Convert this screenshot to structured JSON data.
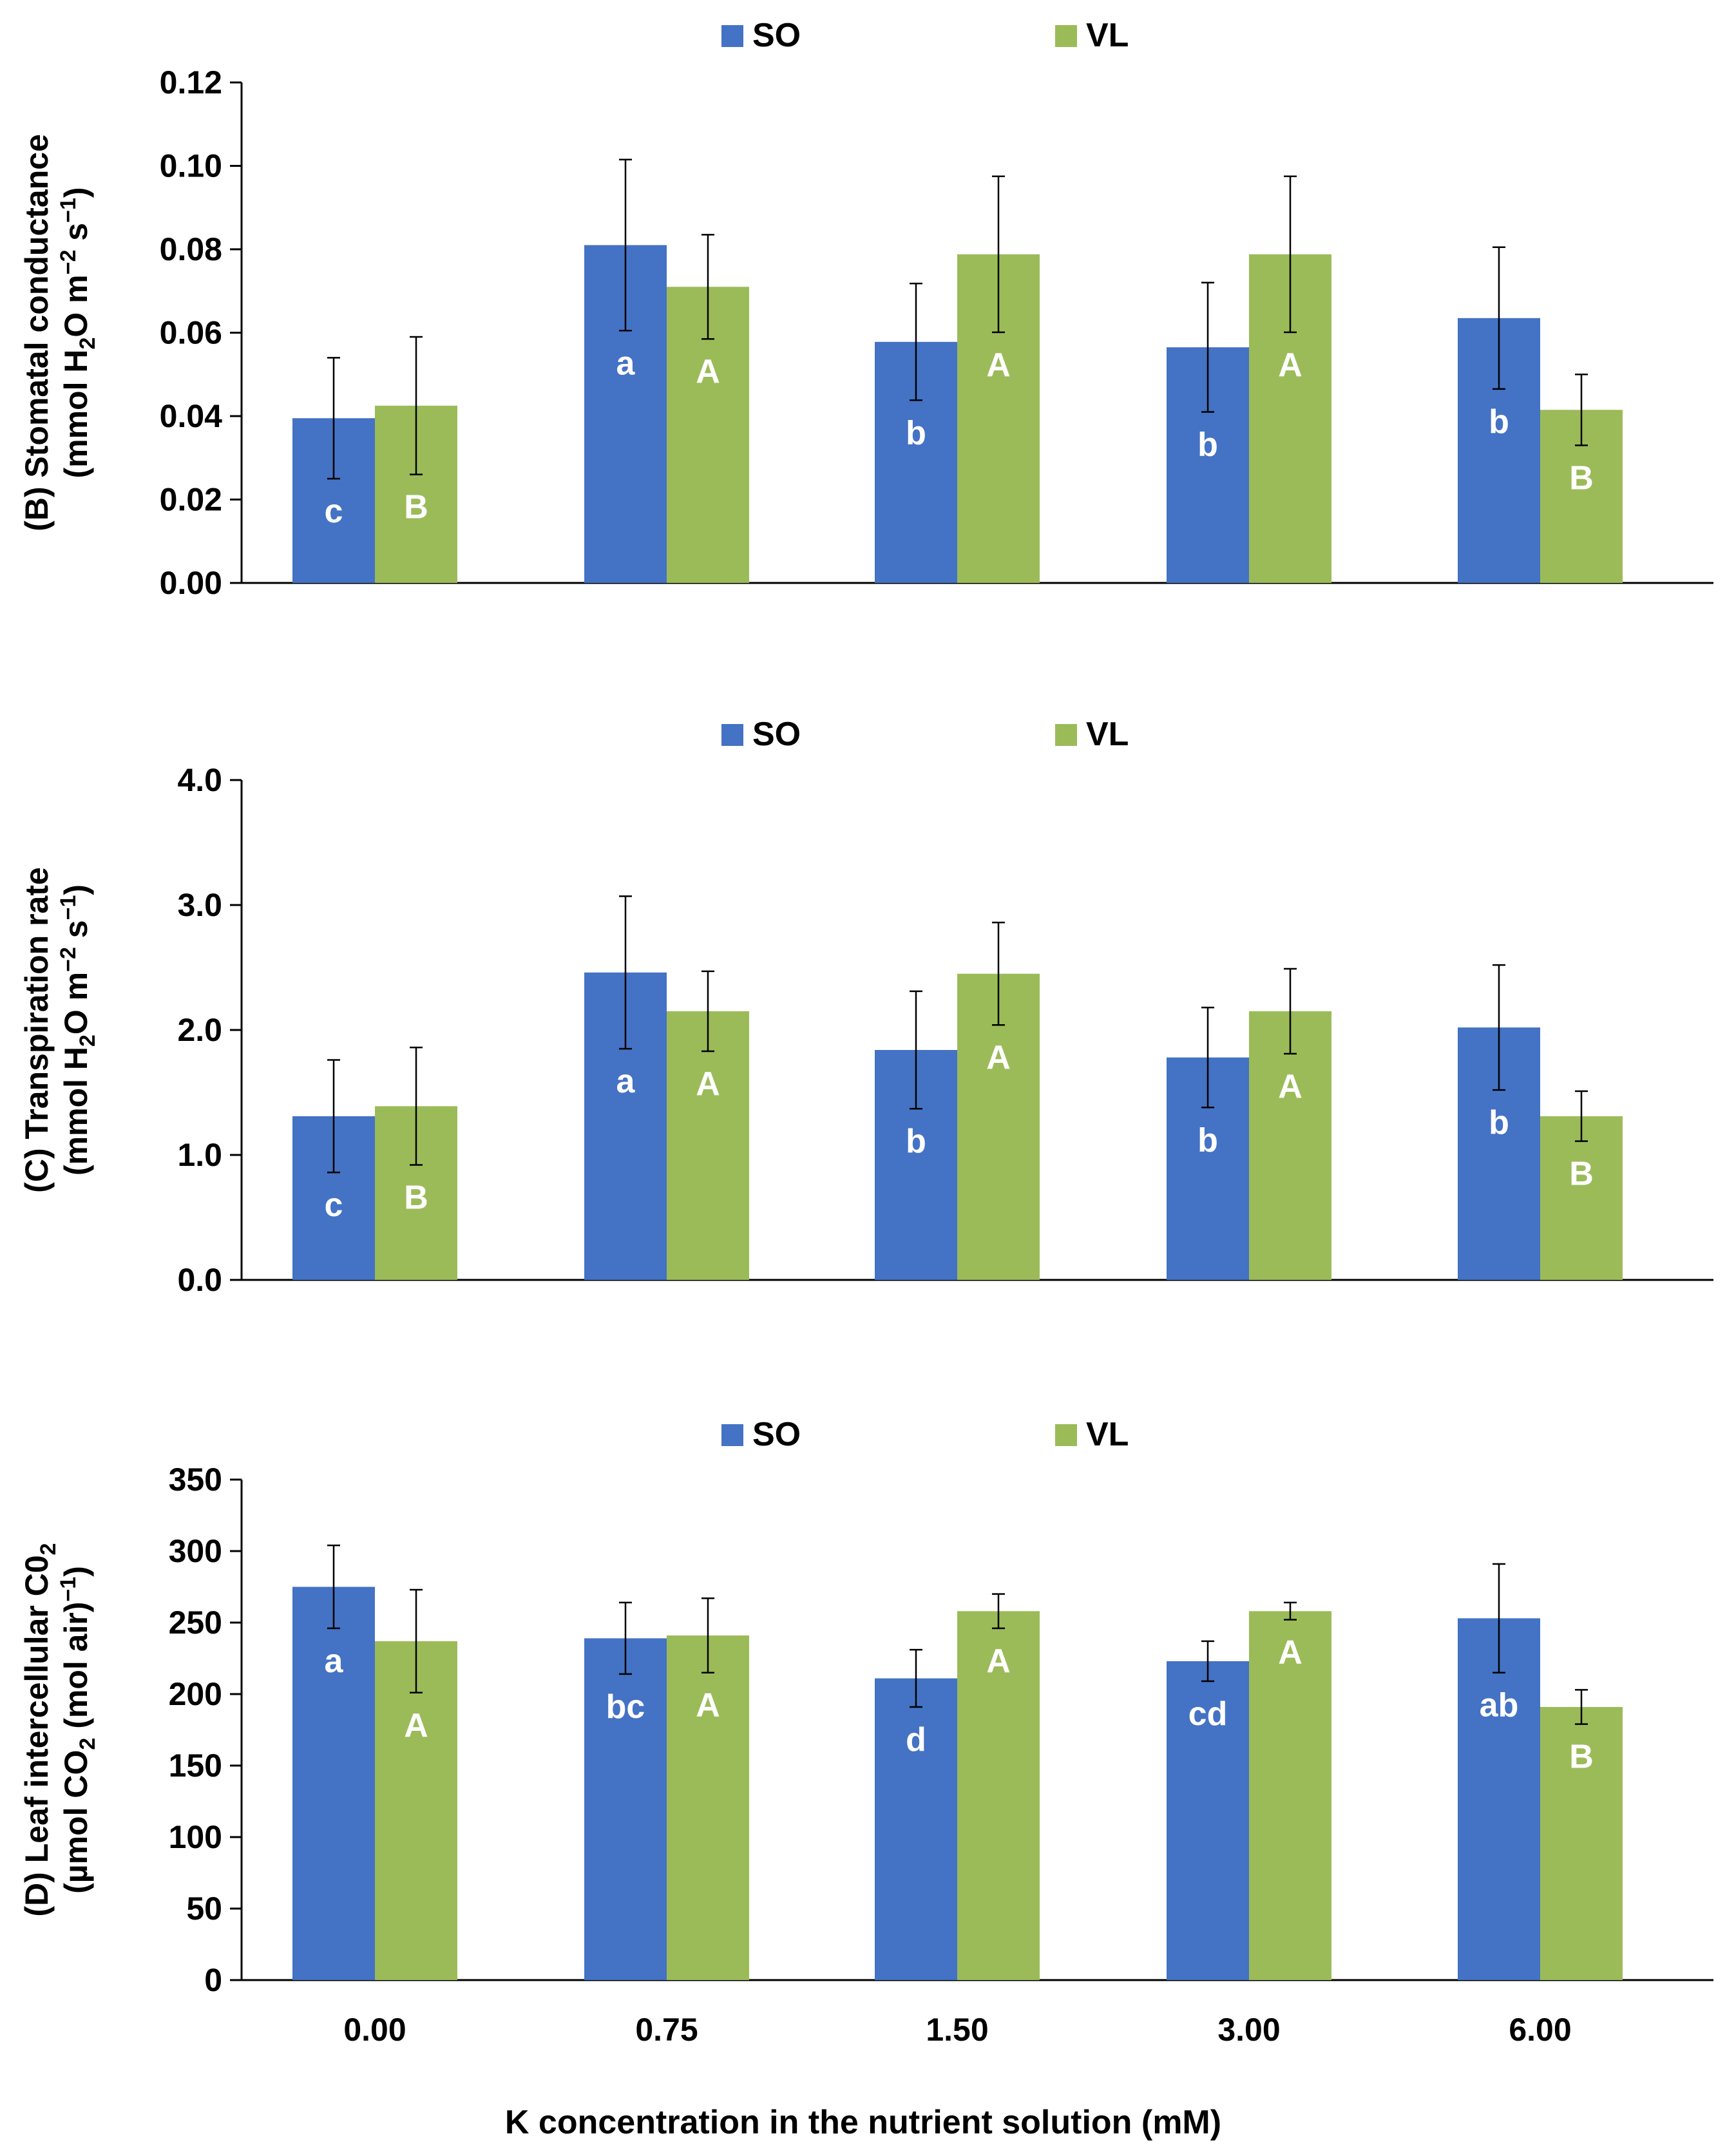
{
  "chart_data": [
    {
      "type": "bar",
      "panel": "B",
      "ylabel_line1": "(B) Stomatal conductance",
      "ylabel_line2_parts": [
        "(mmol H",
        "2",
        "O m",
        "−2",
        " s",
        "−1",
        ")"
      ],
      "ylim": [
        0,
        0.12
      ],
      "yticks": [
        "0.00",
        "0.02",
        "0.04",
        "0.06",
        "0.08",
        "0.10",
        "0.12"
      ],
      "categories": [
        "0.00",
        "0.75",
        "1.50",
        "3.00",
        "6.00"
      ],
      "series": [
        {
          "name": "SO",
          "color": "#4472C4",
          "values": [
            0.0395,
            0.081,
            0.0578,
            0.0565,
            0.0635
          ],
          "errors": [
            0.0145,
            0.0205,
            0.014,
            0.0155,
            0.017
          ],
          "letters": [
            "c",
            "a",
            "b",
            "b",
            "b"
          ]
        },
        {
          "name": "VL",
          "color": "#9BBB59",
          "values": [
            0.0425,
            0.071,
            0.0788,
            0.0788,
            0.0415
          ],
          "errors": [
            0.0165,
            0.0125,
            0.0187,
            0.0187,
            0.0085
          ],
          "letters": [
            "B",
            "A",
            "A",
            "A",
            "B"
          ]
        }
      ]
    },
    {
      "type": "bar",
      "panel": "C",
      "ylabel_line1": "(C) Transpiration rate",
      "ylabel_line2_parts": [
        "(mmol H",
        "2",
        "O  m",
        "−2",
        " s",
        "−1",
        ")"
      ],
      "ylim": [
        0,
        4
      ],
      "yticks": [
        "0.0",
        "1.0",
        "2.0",
        "3.0",
        "4.0"
      ],
      "categories": [
        "0.00",
        "0.75",
        "1.50",
        "3.00",
        "6.00"
      ],
      "series": [
        {
          "name": "SO",
          "color": "#4472C4",
          "values": [
            1.31,
            2.46,
            1.84,
            1.78,
            2.02
          ],
          "errors": [
            0.45,
            0.61,
            0.47,
            0.4,
            0.5
          ],
          "letters": [
            "c",
            "a",
            "b",
            "b",
            "b"
          ]
        },
        {
          "name": "VL",
          "color": "#9BBB59",
          "values": [
            1.39,
            2.15,
            2.45,
            2.15,
            1.31
          ],
          "errors": [
            0.47,
            0.32,
            0.41,
            0.34,
            0.2
          ],
          "letters": [
            "B",
            "A",
            "A",
            "A",
            "B"
          ]
        }
      ]
    },
    {
      "type": "bar",
      "panel": "D",
      "ylabel_line1_parts": [
        "(D) Leaf intercellular C0",
        "2"
      ],
      "ylabel_line2_parts": [
        "(µmol CO",
        "2",
        " (mol air)",
        "−1",
        ")"
      ],
      "ylim": [
        0,
        350
      ],
      "yticks": [
        "0",
        "50",
        "100",
        "150",
        "200",
        "250",
        "300",
        "350"
      ],
      "categories": [
        "0.00",
        "0.75",
        "1.50",
        "3.00",
        "6.00"
      ],
      "series": [
        {
          "name": "SO",
          "color": "#4472C4",
          "values": [
            275,
            239,
            211,
            223,
            253
          ],
          "errors": [
            29,
            25,
            20,
            14,
            38
          ],
          "letters": [
            "a",
            "bc",
            "d",
            "cd",
            "ab"
          ]
        },
        {
          "name": "VL",
          "color": "#9BBB59",
          "values": [
            237,
            241,
            258,
            258,
            191
          ],
          "errors": [
            36,
            26,
            12,
            6,
            12
          ],
          "letters": [
            "A",
            "A",
            "A",
            "A",
            "B"
          ]
        }
      ]
    }
  ],
  "xlabel": "K concentration in the nutrient solution (mM)"
}
